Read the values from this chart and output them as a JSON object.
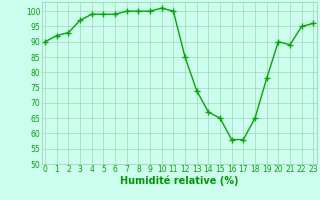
{
  "x": [
    0,
    1,
    2,
    3,
    4,
    5,
    6,
    7,
    8,
    9,
    10,
    11,
    12,
    13,
    14,
    15,
    16,
    17,
    18,
    19,
    20,
    21,
    22,
    23
  ],
  "y": [
    90,
    92,
    93,
    97,
    99,
    99,
    99,
    100,
    100,
    100,
    101,
    100,
    85,
    74,
    67,
    65,
    58,
    58,
    65,
    78,
    90,
    89,
    95,
    96
  ],
  "line_color": "#00aa00",
  "marker": "P",
  "marker_size": 2.5,
  "line_width": 1.0,
  "background_color": "#ccffee",
  "grid_color": "#99ccaa",
  "xlabel": "Humidité relative (%)",
  "xlabel_color": "#009900",
  "xlabel_fontsize": 7,
  "tick_color": "#00aa00",
  "tick_fontsize": 5.5,
  "ylim": [
    50,
    103
  ],
  "yticks": [
    50,
    55,
    60,
    65,
    70,
    75,
    80,
    85,
    90,
    95,
    100
  ],
  "xlim": [
    -0.3,
    23.3
  ],
  "xticks": [
    0,
    1,
    2,
    3,
    4,
    5,
    6,
    7,
    8,
    9,
    10,
    11,
    12,
    13,
    14,
    15,
    16,
    17,
    18,
    19,
    20,
    21,
    22,
    23
  ]
}
